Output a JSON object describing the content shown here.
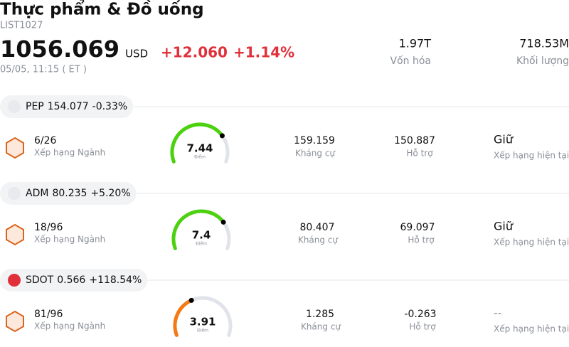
{
  "header": {
    "title": "Thực phẩm & Đồ uống",
    "code": "LIST1027",
    "price": "1056.069",
    "currency": "USD",
    "change": "+12.060",
    "change_pct": "+1.14%",
    "change_color": "#e0313b",
    "time": "05/05, 11:15  ( ET )",
    "market_cap": "1.97T",
    "market_cap_label": "Vốn hóa",
    "volume": "718.53M",
    "volume_label": "Khối lượng"
  },
  "gauge_range": [
    0,
    10
  ],
  "stocks": [
    {
      "ticker": "PEP",
      "price": "154.077",
      "change": "-0.33%",
      "change_color": "#13957d",
      "rank": "6/26",
      "rank_label": "Xếp hạng Ngành",
      "score": 7.44,
      "score_label": "Điểm",
      "score_color": "#4cd10f",
      "resistance": "159.159",
      "resistance_label": "Kháng cự",
      "support": "150.887",
      "support_label": "Hỗ trợ",
      "rating": "Giữ",
      "rating_label": "Xếp hạng hiện tại"
    },
    {
      "ticker": "ADM",
      "price": "80.235",
      "change": "+5.20%",
      "change_color": "#e0313b",
      "rank": "18/96",
      "rank_label": "Xếp hạng Ngành",
      "score": 7.4,
      "score_label": "Điểm",
      "score_color": "#4cd10f",
      "resistance": "80.407",
      "resistance_label": "Kháng cự",
      "support": "69.097",
      "support_label": "Hỗ trợ",
      "rating": "Giữ",
      "rating_label": "Xếp hạng hiện tại"
    },
    {
      "ticker": "SDOT",
      "price": "0.566",
      "change": "+118.54%",
      "change_color": "#e0313b",
      "rank": "81/96",
      "rank_label": "Xếp hạng Ngành",
      "score": 3.91,
      "score_label": "Điểm",
      "score_color": "#f47a14",
      "resistance": "1.285",
      "resistance_label": "Kháng cự",
      "support": "-0.263",
      "support_label": "Hỗ trợ",
      "rating": "--",
      "rating_label": "Xếp hạng hiện tại"
    }
  ]
}
